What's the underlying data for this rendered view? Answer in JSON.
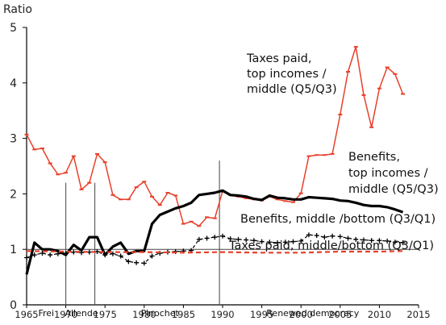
{
  "chart_data": {
    "type": "line",
    "ylabel": "Ratio",
    "xlim": [
      1965,
      2015
    ],
    "ylim": [
      0,
      5
    ],
    "xticks": [
      1965,
      1970,
      1975,
      1980,
      1985,
      1990,
      1995,
      2000,
      2005,
      2010,
      2015
    ],
    "yticks": [
      0,
      1,
      2,
      3,
      4,
      5
    ],
    "reference_line": 1,
    "regime_breaks": [
      1970,
      1973.7,
      1989.6
    ],
    "eras": [
      {
        "label": "Frei",
        "x": 1967.5
      },
      {
        "label": "Allende",
        "x": 1972
      },
      {
        "label": "Pinochet",
        "x": 1982
      },
      {
        "label": "Renewed democracy",
        "x": 2001.5
      }
    ],
    "series": [
      {
        "name": "Taxes paid, top incomes / middle (Q5/Q3)",
        "label_lines": [
          "Taxes paid,",
          "top incomes /",
          "middle (Q5/Q3)"
        ],
        "color": "#e8402a",
        "style": "solid-markers",
        "x": [
          1965,
          1966,
          1967,
          1968,
          1969,
          1970,
          1971,
          1972,
          1973,
          1974,
          1975,
          1976,
          1977,
          1978,
          1979,
          1980,
          1981,
          1982,
          1983,
          1984,
          1985,
          1986,
          1987,
          1988,
          1989,
          1990,
          1991,
          1992,
          1993,
          1994,
          1995,
          1996,
          1997,
          1998,
          1999,
          2000,
          2001,
          2002,
          2003,
          2004,
          2005,
          2006,
          2007,
          2008,
          2009,
          2010,
          2011,
          2012,
          2013
        ],
        "values": [
          3.07,
          2.8,
          2.82,
          2.55,
          2.35,
          2.38,
          2.68,
          2.08,
          2.2,
          2.72,
          2.57,
          1.98,
          1.9,
          1.9,
          2.12,
          2.22,
          1.95,
          1.8,
          2.02,
          1.97,
          1.46,
          1.5,
          1.42,
          1.58,
          1.56,
          2.05,
          1.98,
          1.95,
          1.92,
          1.9,
          1.88,
          1.95,
          1.9,
          1.87,
          1.85,
          2.01,
          2.68,
          2.7,
          2.7,
          2.72,
          3.43,
          4.2,
          4.65,
          3.78,
          3.2,
          3.9,
          4.28,
          4.16,
          3.8
        ]
      },
      {
        "name": "Benefits, top incomes / middle (Q5/Q3)",
        "label_lines": [
          "Benefits,",
          "top incomes /",
          "middle (Q5/Q3)"
        ],
        "color": "#000000",
        "style": "thick",
        "x": [
          1965,
          1966,
          1967,
          1968,
          1969,
          1970,
          1971,
          1972,
          1973,
          1974,
          1975,
          1976,
          1977,
          1978,
          1979,
          1980,
          1981,
          1982,
          1983,
          1984,
          1985,
          1986,
          1987,
          1988,
          1989,
          1990,
          1991,
          1992,
          1993,
          1994,
          1995,
          1996,
          1997,
          1998,
          1999,
          2000,
          2001,
          2002,
          2003,
          2004,
          2005,
          2006,
          2007,
          2008,
          2009,
          2010,
          2011,
          2012,
          2013
        ],
        "values": [
          0.55,
          1.12,
          1.0,
          1.0,
          0.97,
          0.9,
          1.08,
          0.98,
          1.22,
          1.22,
          0.9,
          1.05,
          1.12,
          0.92,
          0.97,
          0.97,
          1.46,
          1.62,
          1.68,
          1.74,
          1.78,
          1.84,
          1.98,
          2.0,
          2.02,
          2.06,
          1.98,
          1.97,
          1.95,
          1.91,
          1.89,
          1.97,
          1.93,
          1.92,
          1.9,
          1.9,
          1.94,
          1.93,
          1.92,
          1.91,
          1.88,
          1.87,
          1.84,
          1.8,
          1.78,
          1.78,
          1.76,
          1.72,
          1.67
        ]
      },
      {
        "name": "Benefits, middle /bottom (Q3/Q1)",
        "label_lines": [
          "Benefits, middle /bottom (Q3/Q1)"
        ],
        "color": "#000000",
        "style": "dashed-plus",
        "x": [
          1965,
          1966,
          1967,
          1968,
          1969,
          1970,
          1971,
          1972,
          1973,
          1974,
          1975,
          1976,
          1977,
          1978,
          1979,
          1980,
          1981,
          1982,
          1983,
          1984,
          1985,
          1986,
          1987,
          1988,
          1989,
          1990,
          1991,
          1992,
          1993,
          1994,
          1995,
          1996,
          1997,
          1998,
          1999,
          2000,
          2001,
          2002,
          2003,
          2004,
          2005,
          2006,
          2007,
          2008,
          2009,
          2010,
          2011,
          2012,
          2013
        ],
        "values": [
          0.85,
          0.9,
          0.93,
          0.9,
          0.92,
          0.93,
          0.95,
          0.94,
          0.95,
          0.96,
          0.9,
          0.92,
          0.88,
          0.78,
          0.76,
          0.75,
          0.88,
          0.93,
          0.95,
          0.96,
          0.97,
          0.98,
          1.18,
          1.2,
          1.22,
          1.24,
          1.19,
          1.18,
          1.17,
          1.16,
          1.14,
          1.13,
          1.12,
          1.13,
          1.14,
          1.15,
          1.26,
          1.25,
          1.22,
          1.24,
          1.23,
          1.2,
          1.18,
          1.17,
          1.16,
          1.16,
          1.15,
          1.13,
          1.12
        ]
      },
      {
        "name": "Taxes paid, middle/bottom (Q3/Q1)",
        "label_lines": [
          "Taxes paid, middle/bottom (Q3/Q1)"
        ],
        "color": "#e8402a",
        "style": "dashed",
        "x": [
          1965,
          1970,
          1975,
          1980,
          1985,
          1990,
          1995,
          2000,
          2005,
          2010,
          2013
        ],
        "values": [
          0.97,
          0.96,
          0.95,
          0.95,
          0.94,
          0.95,
          0.94,
          0.94,
          0.96,
          0.96,
          0.97
        ]
      }
    ]
  }
}
